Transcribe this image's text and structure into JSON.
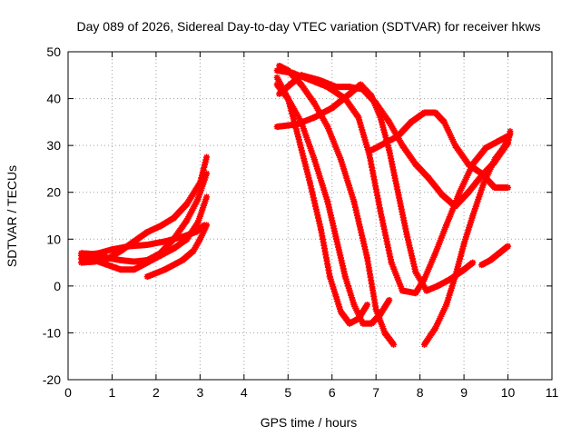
{
  "chart_data": {
    "type": "scatter",
    "title": "Day 089 of 2026, Sidereal Day-to-day VTEC variation (SDTVAR) for receiver hkws",
    "xlabel": "GPS time / hours",
    "ylabel": "SDTVAR / TECUs",
    "xlim": [
      0,
      11
    ],
    "ylim": [
      -20,
      50
    ],
    "x_ticks": [
      "0",
      "1",
      "2",
      "3",
      "4",
      "5",
      "6",
      "7",
      "8",
      "9",
      "10",
      "11"
    ],
    "y_ticks": [
      "-20",
      "-10",
      "0",
      "10",
      "20",
      "30",
      "40",
      "50"
    ],
    "grid": true,
    "legend": "none",
    "marker_color": "#ff0000",
    "series": [
      {
        "points": [
          [
            0.3,
            5.0
          ],
          [
            0.6,
            5.2
          ],
          [
            0.9,
            5.8
          ],
          [
            1.2,
            7.5
          ],
          [
            1.5,
            9.5
          ],
          [
            1.8,
            11.5
          ],
          [
            2.1,
            12.8
          ],
          [
            2.4,
            14.5
          ],
          [
            2.7,
            17.5
          ],
          [
            3.0,
            22.0
          ],
          [
            3.15,
            27.5
          ]
        ]
      },
      {
        "points": [
          [
            0.3,
            7.0
          ],
          [
            0.6,
            6.8
          ],
          [
            0.9,
            6.0
          ],
          [
            1.2,
            5.5
          ],
          [
            1.5,
            5.2
          ],
          [
            1.8,
            5.5
          ],
          [
            2.1,
            7.0
          ],
          [
            2.4,
            10.0
          ],
          [
            2.7,
            14.0
          ],
          [
            2.95,
            18.5
          ],
          [
            3.15,
            24.0
          ]
        ]
      },
      {
        "points": [
          [
            0.3,
            5.8
          ],
          [
            0.6,
            5.5
          ],
          [
            0.9,
            4.5
          ],
          [
            1.2,
            3.5
          ],
          [
            1.5,
            3.5
          ],
          [
            1.8,
            5.0
          ],
          [
            2.1,
            6.5
          ],
          [
            2.4,
            8.0
          ],
          [
            2.7,
            10.0
          ],
          [
            2.95,
            13.5
          ],
          [
            3.15,
            19.0
          ]
        ]
      },
      {
        "points": [
          [
            0.3,
            6.5
          ],
          [
            0.7,
            7.0
          ],
          [
            1.0,
            7.8
          ],
          [
            1.4,
            8.5
          ],
          [
            1.8,
            8.8
          ],
          [
            2.2,
            9.5
          ],
          [
            2.6,
            10.5
          ],
          [
            2.9,
            11.5
          ],
          [
            3.1,
            13.0
          ]
        ]
      },
      {
        "points": [
          [
            1.8,
            2.0
          ],
          [
            2.2,
            3.5
          ],
          [
            2.6,
            5.5
          ],
          [
            2.85,
            7.5
          ],
          [
            3.0,
            10.0
          ],
          [
            3.15,
            13.0
          ]
        ]
      },
      {
        "points": [
          [
            4.75,
            43.0
          ],
          [
            5.0,
            40.0
          ],
          [
            5.3,
            35.0
          ],
          [
            5.6,
            27.0
          ],
          [
            5.9,
            18.0
          ],
          [
            6.1,
            10.0
          ],
          [
            6.3,
            2.0
          ],
          [
            6.5,
            -4.0
          ],
          [
            6.7,
            -8.0
          ],
          [
            6.9,
            -8.0
          ],
          [
            7.1,
            -6.0
          ],
          [
            7.3,
            -3.0
          ]
        ]
      },
      {
        "points": [
          [
            4.75,
            44.5
          ],
          [
            5.0,
            40.0
          ],
          [
            5.2,
            33.0
          ],
          [
            5.5,
            22.0
          ],
          [
            5.75,
            12.0
          ],
          [
            5.95,
            2.0
          ],
          [
            6.2,
            -5.5
          ],
          [
            6.4,
            -8.0
          ],
          [
            6.6,
            -7.0
          ],
          [
            6.8,
            -4.0
          ]
        ]
      },
      {
        "points": [
          [
            4.8,
            47.0
          ],
          [
            5.0,
            46.0
          ],
          [
            5.3,
            43.0
          ],
          [
            5.6,
            39.0
          ],
          [
            5.9,
            34.0
          ],
          [
            6.2,
            27.0
          ],
          [
            6.5,
            18.0
          ],
          [
            6.8,
            6.0
          ],
          [
            7.0,
            -5.0
          ],
          [
            7.2,
            -10.0
          ],
          [
            7.4,
            -12.5
          ]
        ]
      },
      {
        "points": [
          [
            4.75,
            46.0
          ],
          [
            5.1,
            45.5
          ],
          [
            5.5,
            44.0
          ],
          [
            5.9,
            42.5
          ],
          [
            6.3,
            40.0
          ],
          [
            6.6,
            36.0
          ],
          [
            6.85,
            28.0
          ],
          [
            7.1,
            16.0
          ],
          [
            7.35,
            5.0
          ],
          [
            7.6,
            -1.0
          ],
          [
            7.9,
            -1.5
          ],
          [
            8.1,
            1.5
          ],
          [
            8.35,
            7.0
          ],
          [
            8.6,
            13.0
          ],
          [
            8.9,
            20.0
          ],
          [
            9.2,
            26.0
          ],
          [
            9.5,
            29.5
          ],
          [
            9.8,
            31.0
          ],
          [
            10.0,
            32.0
          ]
        ]
      },
      {
        "points": [
          [
            4.75,
            34.0
          ],
          [
            5.2,
            34.5
          ],
          [
            5.6,
            36.0
          ],
          [
            6.0,
            38.0
          ],
          [
            6.4,
            41.0
          ],
          [
            6.65,
            43.0
          ],
          [
            6.9,
            40.5
          ],
          [
            7.1,
            36.0
          ],
          [
            7.3,
            29.0
          ],
          [
            7.5,
            20.0
          ],
          [
            7.7,
            11.0
          ],
          [
            7.9,
            3.0
          ],
          [
            8.15,
            -1.0
          ],
          [
            8.4,
            0.0
          ],
          [
            8.7,
            1.5
          ],
          [
            9.0,
            3.5
          ],
          [
            9.2,
            5.0
          ]
        ]
      },
      {
        "points": [
          [
            4.8,
            41.0
          ],
          [
            5.3,
            45.0
          ],
          [
            5.7,
            44.0
          ],
          [
            6.1,
            42.5
          ],
          [
            6.4,
            42.5
          ],
          [
            6.7,
            42.0
          ],
          [
            7.0,
            39.0
          ],
          [
            7.3,
            35.0
          ],
          [
            7.6,
            30.0
          ],
          [
            7.9,
            26.0
          ],
          [
            8.2,
            23.0
          ],
          [
            8.5,
            19.5
          ],
          [
            8.8,
            17.0
          ],
          [
            9.1,
            20.0
          ],
          [
            9.4,
            23.5
          ],
          [
            9.7,
            26.5
          ],
          [
            10.0,
            30.5
          ],
          [
            10.05,
            33.0
          ]
        ]
      },
      {
        "points": [
          [
            6.9,
            29.0
          ],
          [
            7.2,
            30.5
          ],
          [
            7.5,
            32.0
          ],
          [
            7.8,
            35.0
          ],
          [
            8.1,
            37.0
          ],
          [
            8.35,
            37.0
          ],
          [
            8.55,
            35.0
          ],
          [
            8.8,
            30.0
          ],
          [
            9.1,
            26.0
          ],
          [
            9.4,
            24.0
          ],
          [
            9.7,
            21.0
          ],
          [
            10.0,
            21.0
          ]
        ]
      },
      {
        "points": [
          [
            8.1,
            -12.5
          ],
          [
            8.35,
            -9.0
          ],
          [
            8.6,
            -4.0
          ],
          [
            8.8,
            2.0
          ],
          [
            9.0,
            9.0
          ],
          [
            9.2,
            15.0
          ],
          [
            9.45,
            22.0
          ],
          [
            9.7,
            27.0
          ],
          [
            9.9,
            29.5
          ],
          [
            10.05,
            32.5
          ]
        ]
      },
      {
        "points": [
          [
            9.4,
            4.5
          ],
          [
            9.6,
            5.5
          ],
          [
            9.8,
            7.0
          ],
          [
            10.0,
            8.5
          ]
        ]
      }
    ]
  }
}
